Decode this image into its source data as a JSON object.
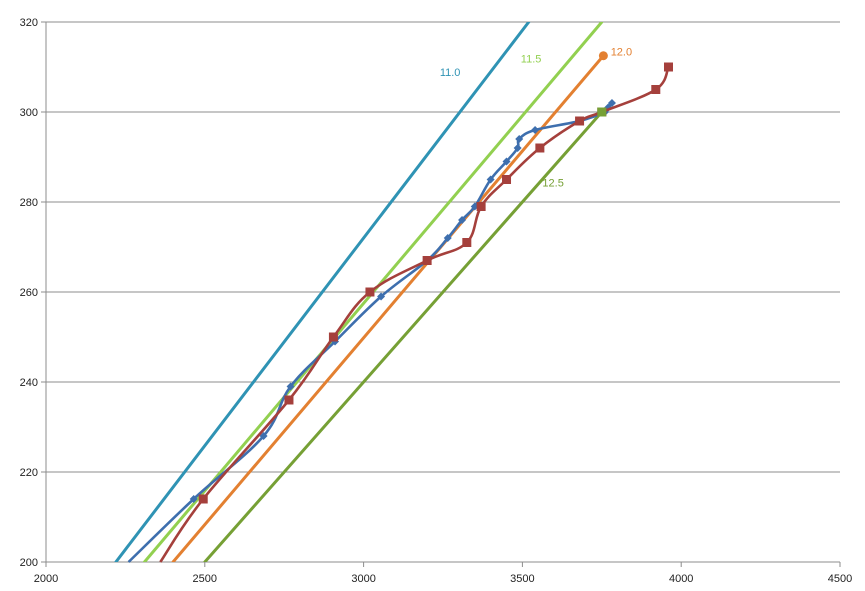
{
  "chart_data": {
    "type": "scatter",
    "title": "",
    "xlabel": "",
    "ylabel": "",
    "xlim": [
      2000,
      4500
    ],
    "ylim": [
      200,
      320
    ],
    "x_ticks": [
      2000,
      2500,
      3000,
      3500,
      4000,
      4500
    ],
    "y_ticks": [
      200,
      220,
      240,
      260,
      280,
      300,
      320
    ],
    "grid": "horizontal",
    "legend": "none",
    "reference_lines": [
      {
        "label": "11.0",
        "color": "#2f93b4",
        "points": [
          [
            2220,
            200
          ],
          [
            3520,
            320
          ]
        ],
        "label_at": [
          3240,
          308
        ]
      },
      {
        "label": "11.5",
        "color": "#92d050",
        "points": [
          [
            2310,
            200
          ],
          [
            3750,
            320
          ]
        ],
        "label_at": [
          3495,
          311
        ]
      },
      {
        "label": "12.0",
        "color": "#e38031",
        "points": [
          [
            2400,
            200
          ],
          [
            3755,
            312.5
          ]
        ],
        "end_marker": "circle",
        "label_at": [
          3778,
          312.6
        ]
      },
      {
        "label": "12.5",
        "color": "#76a035",
        "points": [
          [
            2500,
            200
          ],
          [
            3750,
            300
          ]
        ],
        "end_marker": "square",
        "label_at": [
          3563,
          283.5
        ]
      }
    ],
    "series": [
      {
        "color": "#3e6fae",
        "marker": "diamond",
        "points": [
          [
            2260,
            200
          ],
          [
            2465,
            214
          ],
          [
            2685,
            228
          ],
          [
            2770,
            239
          ],
          [
            2910,
            249
          ],
          [
            3055,
            259
          ],
          [
            3200,
            267
          ],
          [
            3265,
            272
          ],
          [
            3310,
            276
          ],
          [
            3350,
            279
          ],
          [
            3400,
            285
          ],
          [
            3450,
            289
          ],
          [
            3485,
            292
          ],
          [
            3490,
            294
          ],
          [
            3540,
            296
          ],
          [
            3680,
            298
          ],
          [
            3760,
            300
          ],
          [
            3770,
            301
          ],
          [
            3782,
            302
          ]
        ]
      },
      {
        "color": "#a5403c",
        "marker": "square",
        "points": [
          [
            2360,
            200
          ],
          [
            2495,
            214
          ],
          [
            2765,
            236
          ],
          [
            2905,
            250
          ],
          [
            3020,
            260
          ],
          [
            3200,
            267
          ],
          [
            3325,
            271
          ],
          [
            3370,
            279
          ],
          [
            3450,
            285
          ],
          [
            3555,
            292
          ],
          [
            3680,
            298
          ],
          [
            3750,
            300
          ],
          [
            3920,
            305
          ],
          [
            3960,
            310
          ]
        ]
      }
    ]
  }
}
